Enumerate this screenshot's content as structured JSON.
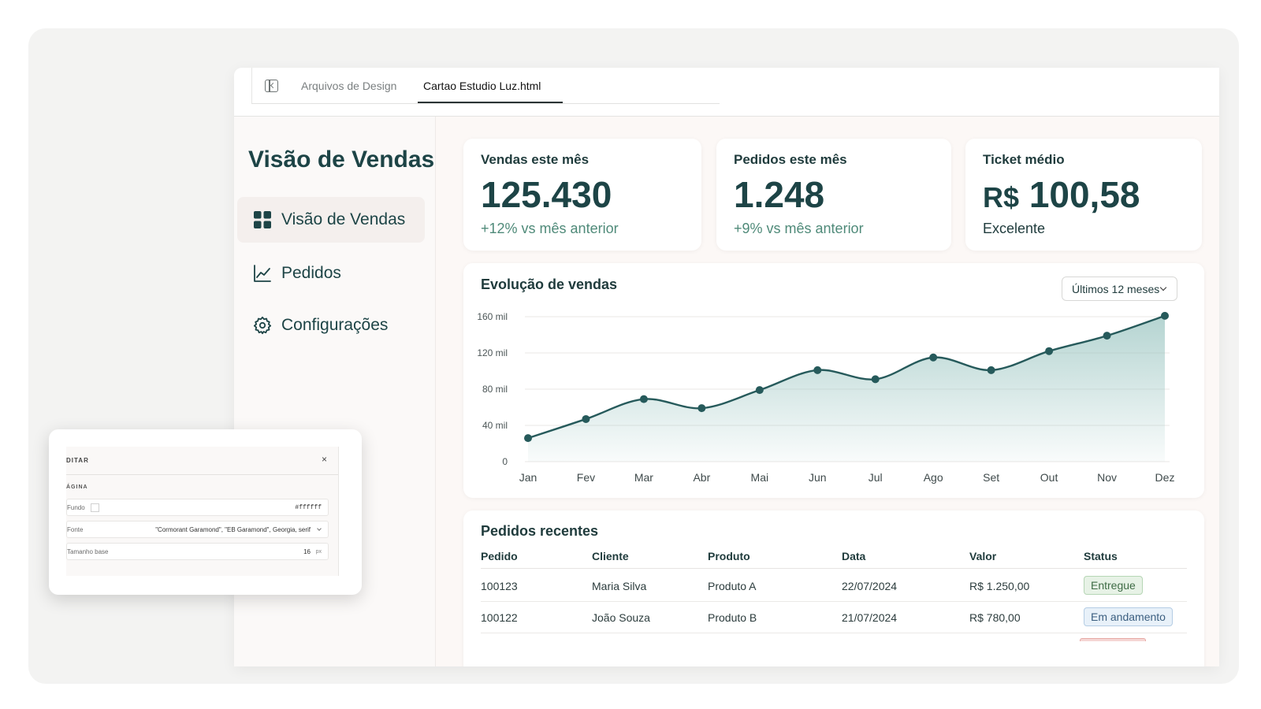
{
  "tabs": {
    "inactive": "Arquivos de Design",
    "active": "Cartao Estudio Luz.html"
  },
  "sidebar": {
    "brand": "Visão de Vendas",
    "items": [
      {
        "label": "Visão de Vendas",
        "icon": "dashboard-grid-icon",
        "active": true
      },
      {
        "label": "Pedidos",
        "icon": "line-chart-icon",
        "active": false
      },
      {
        "label": "Configurações",
        "icon": "gear-icon",
        "active": false
      }
    ]
  },
  "kpis": [
    {
      "title": "Vendas este mês",
      "value": "125.430",
      "sub": "+12% vs mês anterior"
    },
    {
      "title": "Pedidos este mês",
      "value": "1.248",
      "sub": "+9% vs mês anterior"
    },
    {
      "title": "Ticket médio",
      "prefix": "R$",
      "value": "100,58",
      "sub": "Excelente"
    }
  ],
  "chart_card": {
    "title": "Evolução de vendas",
    "period": "Últimos 12 meses"
  },
  "chart_data": {
    "type": "area",
    "title": "Evolução de vendas",
    "categories": [
      "Jan",
      "Fev",
      "Mar",
      "Abr",
      "Mai",
      "Jun",
      "Jul",
      "Ago",
      "Set",
      "Out",
      "Nov",
      "Dez"
    ],
    "y_ticks": [
      "160 mil",
      "120 mil",
      "80 mil",
      "40 mil",
      "0"
    ],
    "ylim": [
      0,
      160000
    ],
    "values": [
      26000,
      47000,
      69000,
      59000,
      79000,
      101000,
      91000,
      115000,
      101000,
      122000,
      139000,
      161000
    ],
    "line_color": "#265a5b",
    "fill_color": "#9cc6c2",
    "grid": true
  },
  "orders": {
    "title": "Pedidos recentes",
    "columns": [
      "Pedido",
      "Cliente",
      "Produto",
      "Data",
      "Valor",
      "Status"
    ],
    "rows": [
      [
        "100123",
        "Maria Silva",
        "Produto A",
        "22/07/2024",
        "R$ 1.250,00",
        "Entregue"
      ],
      [
        "100122",
        "João Souza",
        "Produto B",
        "21/07/2024",
        "R$ 780,00",
        "Em andamento"
      ]
    ]
  },
  "editor": {
    "title": "DITAR",
    "close": "×",
    "section": "ÁGINA",
    "fields": {
      "background_label": "Fundo",
      "background_value": "#ffffff",
      "font_label": "Fonte",
      "font_value": "\"Cormorant Garamond\", \"EB Garamond\", Georgia, serif",
      "size_label": "Tamanho base",
      "size_value": "16",
      "size_unit": "px"
    }
  },
  "colors": {
    "accent": "#1d4446",
    "positive": "#4f8a79",
    "badge_delivered": "#e7f2e6",
    "badge_in_progress": "#e8f1f9"
  }
}
